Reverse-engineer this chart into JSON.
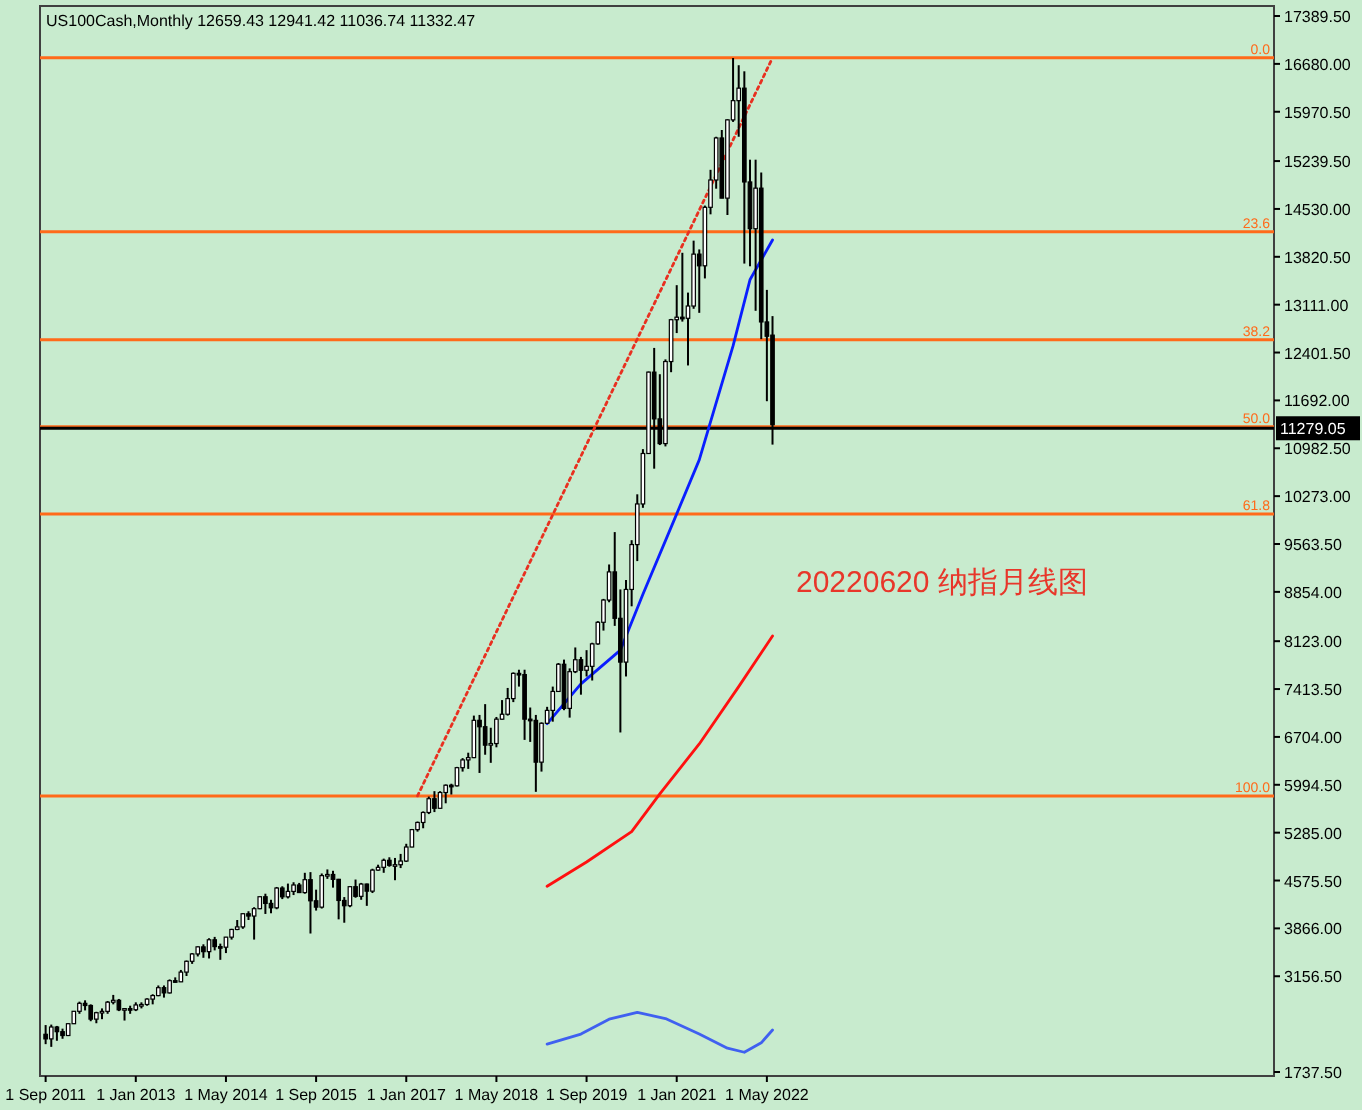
{
  "chart_data": {
    "type": "candlestick",
    "title": "US100Cash,Monthly  12659.43 12941.42 11036.74 11332.47",
    "annotations": [
      "20220620 纳指月线图",
      {
        "text": "0.0",
        "y": 16770
      },
      {
        "text": "23.6",
        "y": 14190
      },
      {
        "text": "38.2",
        "y": 12590
      },
      {
        "text": "50.0",
        "y": 11300
      },
      {
        "text": "61.8",
        "y": 10010
      },
      {
        "text": "100.0",
        "y": 5830
      }
    ],
    "x": [
      "2011-09",
      "2011-10",
      "2011-11",
      "2011-12",
      "2012-01",
      "2012-02",
      "2012-03",
      "2012-04",
      "2012-05",
      "2012-06",
      "2012-07",
      "2012-08",
      "2012-09",
      "2012-10",
      "2012-11",
      "2012-12",
      "2013-01",
      "2013-02",
      "2013-03",
      "2013-04",
      "2013-05",
      "2013-06",
      "2013-07",
      "2013-08",
      "2013-09",
      "2013-10",
      "2013-11",
      "2013-12",
      "2014-01",
      "2014-02",
      "2014-03",
      "2014-04",
      "2014-05",
      "2014-06",
      "2014-07",
      "2014-08",
      "2014-09",
      "2014-10",
      "2014-11",
      "2014-12",
      "2015-01",
      "2015-02",
      "2015-03",
      "2015-04",
      "2015-05",
      "2015-06",
      "2015-07",
      "2015-08",
      "2015-09",
      "2015-10",
      "2015-11",
      "2015-12",
      "2016-01",
      "2016-02",
      "2016-03",
      "2016-04",
      "2016-05",
      "2016-06",
      "2016-07",
      "2016-08",
      "2016-09",
      "2016-10",
      "2016-11",
      "2016-12",
      "2017-01",
      "2017-02",
      "2017-03",
      "2017-04",
      "2017-05",
      "2017-06",
      "2017-07",
      "2017-08",
      "2017-09",
      "2017-10",
      "2017-11",
      "2017-12",
      "2018-01",
      "2018-02",
      "2018-03",
      "2018-04",
      "2018-05",
      "2018-06",
      "2018-07",
      "2018-08",
      "2018-09",
      "2018-10",
      "2018-11",
      "2018-12",
      "2019-01",
      "2019-02",
      "2019-03",
      "2019-04",
      "2019-05",
      "2019-06",
      "2019-07",
      "2019-08",
      "2019-09",
      "2019-10",
      "2019-11",
      "2019-12",
      "2020-01",
      "2020-02",
      "2020-03",
      "2020-04",
      "2020-05",
      "2020-06",
      "2020-07",
      "2020-08",
      "2020-09",
      "2020-10",
      "2020-11",
      "2020-12",
      "2021-01",
      "2021-02",
      "2021-03",
      "2021-04",
      "2021-05",
      "2021-06",
      "2021-07",
      "2021-08",
      "2021-09",
      "2021-10",
      "2021-11",
      "2021-12",
      "2022-01",
      "2022-02",
      "2022-03",
      "2022-04",
      "2022-05",
      "2022-06"
    ],
    "ohlc": [
      [
        2296,
        2433,
        2150,
        2228
      ],
      [
        2228,
        2440,
        2110,
        2404
      ],
      [
        2404,
        2420,
        2200,
        2335
      ],
      [
        2335,
        2380,
        2230,
        2278
      ],
      [
        2278,
        2460,
        2270,
        2453
      ],
      [
        2453,
        2640,
        2450,
        2637
      ],
      [
        2637,
        2780,
        2600,
        2755
      ],
      [
        2755,
        2800,
        2650,
        2723
      ],
      [
        2723,
        2740,
        2490,
        2521
      ],
      [
        2521,
        2630,
        2460,
        2616
      ],
      [
        2616,
        2680,
        2520,
        2636
      ],
      [
        2636,
        2790,
        2600,
        2772
      ],
      [
        2772,
        2880,
        2740,
        2800
      ],
      [
        2800,
        2820,
        2640,
        2659
      ],
      [
        2659,
        2680,
        2500,
        2677
      ],
      [
        2677,
        2720,
        2600,
        2660
      ],
      [
        2660,
        2770,
        2640,
        2731
      ],
      [
        2731,
        2770,
        2680,
        2738
      ],
      [
        2738,
        2830,
        2720,
        2818
      ],
      [
        2818,
        2890,
        2740,
        2870
      ],
      [
        2870,
        3020,
        2860,
        2987
      ],
      [
        2987,
        3020,
        2840,
        2910
      ],
      [
        2910,
        3110,
        2900,
        3091
      ],
      [
        3091,
        3140,
        3060,
        3074
      ],
      [
        3074,
        3250,
        3070,
        3218
      ],
      [
        3218,
        3390,
        3160,
        3378
      ],
      [
        3378,
        3500,
        3340,
        3487
      ],
      [
        3487,
        3600,
        3450,
        3592
      ],
      [
        3592,
        3630,
        3430,
        3521
      ],
      [
        3521,
        3720,
        3420,
        3697
      ],
      [
        3697,
        3740,
        3540,
        3596
      ],
      [
        3596,
        3640,
        3400,
        3587
      ],
      [
        3587,
        3740,
        3500,
        3736
      ],
      [
        3736,
        3860,
        3700,
        3850
      ],
      [
        3850,
        3990,
        3840,
        3888
      ],
      [
        3888,
        4090,
        3860,
        4083
      ],
      [
        4083,
        4120,
        3990,
        4049
      ],
      [
        4049,
        4180,
        3700,
        4158
      ],
      [
        4158,
        4340,
        4150,
        4335
      ],
      [
        4335,
        4380,
        4080,
        4236
      ],
      [
        4236,
        4290,
        4090,
        4171
      ],
      [
        4171,
        4480,
        4150,
        4464
      ],
      [
        4464,
        4490,
        4300,
        4334
      ],
      [
        4334,
        4530,
        4310,
        4414
      ],
      [
        4414,
        4550,
        4360,
        4509
      ],
      [
        4509,
        4540,
        4390,
        4397
      ],
      [
        4397,
        4690,
        4380,
        4588
      ],
      [
        4588,
        4700,
        3790,
        4275
      ],
      [
        4275,
        4440,
        4130,
        4181
      ],
      [
        4181,
        4680,
        4160,
        4648
      ],
      [
        4648,
        4740,
        4600,
        4665
      ],
      [
        4665,
        4720,
        4470,
        4593
      ],
      [
        4593,
        4600,
        4000,
        4280
      ],
      [
        4280,
        4330,
        3950,
        4202
      ],
      [
        4202,
        4490,
        4180,
        4484
      ],
      [
        4484,
        4590,
        4320,
        4341
      ],
      [
        4341,
        4540,
        4290,
        4523
      ],
      [
        4523,
        4530,
        4200,
        4418
      ],
      [
        4418,
        4750,
        4390,
        4730
      ],
      [
        4730,
        4810,
        4720,
        4771
      ],
      [
        4771,
        4900,
        4690,
        4875
      ],
      [
        4875,
        4920,
        4780,
        4801
      ],
      [
        4801,
        4910,
        4580,
        4810
      ],
      [
        4810,
        4970,
        4760,
        4864
      ],
      [
        4864,
        5120,
        4850,
        5072
      ],
      [
        5072,
        5340,
        5070,
        5330
      ],
      [
        5330,
        5450,
        5300,
        5436
      ],
      [
        5436,
        5600,
        5350,
        5584
      ],
      [
        5584,
        5820,
        5560,
        5788
      ],
      [
        5788,
        5900,
        5590,
        5646
      ],
      [
        5646,
        5900,
        5640,
        5880
      ],
      [
        5880,
        6000,
        5720,
        5988
      ],
      [
        5988,
        6010,
        5850,
        5979
      ],
      [
        5979,
        6260,
        5970,
        6248
      ],
      [
        6248,
        6390,
        6190,
        6363
      ],
      [
        6363,
        6470,
        6230,
        6397
      ],
      [
        6397,
        7020,
        6390,
        6950
      ],
      [
        6950,
        7030,
        6170,
        6855
      ],
      [
        6855,
        7190,
        6440,
        6582
      ],
      [
        6582,
        6840,
        6320,
        6606
      ],
      [
        6606,
        7000,
        6550,
        6967
      ],
      [
        6967,
        7250,
        6960,
        7040
      ],
      [
        7040,
        7430,
        7020,
        7272
      ],
      [
        7272,
        7660,
        7220,
        7646
      ],
      [
        7646,
        7700,
        7450,
        7628
      ],
      [
        7628,
        7700,
        6660,
        6967
      ],
      [
        6967,
        7140,
        6630,
        6949
      ],
      [
        6949,
        7030,
        5890,
        6330
      ],
      [
        6330,
        6920,
        6190,
        6906
      ],
      [
        6906,
        7150,
        6900,
        7097
      ],
      [
        7097,
        7450,
        6930,
        7378
      ],
      [
        7378,
        7800,
        7370,
        7781
      ],
      [
        7781,
        7850,
        7100,
        7127
      ],
      [
        7127,
        7720,
        6990,
        7671
      ],
      [
        7671,
        8030,
        7650,
        7848
      ],
      [
        7848,
        7890,
        7330,
        7692
      ],
      [
        7692,
        7990,
        7600,
        7750
      ],
      [
        7750,
        8100,
        7540,
        8083
      ],
      [
        8083,
        8420,
        8070,
        8403
      ],
      [
        8403,
        8750,
        8280,
        8733
      ],
      [
        8733,
        9260,
        8700,
        9150
      ],
      [
        9150,
        9740,
        8350,
        8462
      ],
      [
        8462,
        8890,
        6770,
        7813
      ],
      [
        7813,
        9030,
        7600,
        8890
      ],
      [
        8890,
        9620,
        8640,
        9555
      ],
      [
        9555,
        10300,
        9310,
        10157
      ],
      [
        10157,
        10970,
        10100,
        10905
      ],
      [
        10905,
        12120,
        10900,
        12111
      ],
      [
        12111,
        12470,
        10680,
        11418
      ],
      [
        11418,
        12080,
        11030,
        11052
      ],
      [
        11052,
        12300,
        11010,
        12268
      ],
      [
        12268,
        12900,
        12110,
        12888
      ],
      [
        12888,
        13400,
        12690,
        12925
      ],
      [
        12925,
        13880,
        12860,
        12909
      ],
      [
        12909,
        13290,
        12210,
        13091
      ],
      [
        13091,
        14060,
        13050,
        13860
      ],
      [
        13860,
        13930,
        12990,
        13687
      ],
      [
        13687,
        14580,
        13500,
        14554
      ],
      [
        14554,
        15110,
        14450,
        14959
      ],
      [
        14959,
        15600,
        14830,
        15582
      ],
      [
        15582,
        15700,
        14690,
        14690
      ],
      [
        14690,
        15860,
        14440,
        15850
      ],
      [
        15850,
        16767,
        15820,
        16135
      ],
      [
        16135,
        16660,
        15600,
        16320
      ],
      [
        16320,
        16570,
        13720,
        14930
      ],
      [
        14930,
        15260,
        13680,
        14237
      ],
      [
        14237,
        15260,
        13020,
        14838
      ],
      [
        14838,
        15070,
        12600,
        12855
      ],
      [
        12855,
        13330,
        11680,
        12643
      ],
      [
        12659.43,
        12941.42,
        11036.74,
        11332.47
      ]
    ],
    "series": [
      {
        "type": "line",
        "color": "#0a1eff",
        "x": [
          "2019-02",
          "2019-08",
          "2020-03",
          "2020-07",
          "2021-01",
          "2021-05",
          "2021-11",
          "2022-02",
          "2022-06"
        ],
        "values": [
          6900,
          7490,
          7990,
          8820,
          10010,
          10810,
          12500,
          13480,
          14070
        ]
      },
      {
        "type": "line",
        "color": "#ff1010",
        "x": [
          "2019-02",
          "2019-09",
          "2020-05",
          "2020-10",
          "2021-05",
          "2021-12",
          "2022-06"
        ],
        "values": [
          4490,
          4850,
          5300,
          5860,
          6600,
          7450,
          8200
        ]
      },
      {
        "type": "line",
        "color": "#4060f0",
        "x": [
          "2019-02",
          "2019-08",
          "2020-01",
          "2020-06",
          "2020-11",
          "2021-05",
          "2021-10",
          "2022-01",
          "2022-04",
          "2022-06"
        ],
        "values": [
          2150,
          2300,
          2520,
          2620,
          2530,
          2300,
          2090,
          2030,
          2170,
          2360
        ]
      },
      {
        "type": "line",
        "color": "#e83020",
        "line_style": "dotted",
        "x": [
          "2017-03",
          "2022-06"
        ],
        "values": [
          5830,
          16770
        ]
      }
    ],
    "ref_lines": [
      {
        "axis": "y",
        "value": 16770,
        "color": "#ff6a1a"
      },
      {
        "axis": "y",
        "value": 14190,
        "color": "#ff6a1a"
      },
      {
        "axis": "y",
        "value": 12590,
        "color": "#ff6a1a"
      },
      {
        "axis": "y",
        "value": 11300,
        "color": "#ff6a1a"
      },
      {
        "axis": "y",
        "value": 10010,
        "color": "#ff6a1a"
      },
      {
        "axis": "y",
        "value": 5830,
        "color": "#ff6a1a"
      },
      {
        "axis": "y",
        "value": 11279.05,
        "label": "11279.05",
        "color": "#000000"
      }
    ],
    "xlim": [
      "2011-08",
      "2029-11"
    ],
    "xticks": [
      {
        "value": "2011-09",
        "label": "1 Sep 2011"
      },
      {
        "value": "2013-01",
        "label": "1 Jan 2013"
      },
      {
        "value": "2014-05",
        "label": "1 May 2014"
      },
      {
        "value": "2015-09",
        "label": "1 Sep 2015"
      },
      {
        "value": "2017-01",
        "label": "1 Jan 2017"
      },
      {
        "value": "2018-05",
        "label": "1 May 2018"
      },
      {
        "value": "2019-09",
        "label": "1 Sep 2019"
      },
      {
        "value": "2021-01",
        "label": "1 Jan 2021"
      },
      {
        "value": "2022-05",
        "label": "1 May 2022"
      }
    ],
    "ylim": [
      1678,
      17538
    ],
    "yticks": [
      {
        "value": 1737.5,
        "label": "1737.50"
      },
      {
        "value": 3156.5,
        "label": "3156.50"
      },
      {
        "value": 3866,
        "label": "3866.00"
      },
      {
        "value": 4575.5,
        "label": "4575.50"
      },
      {
        "value": 5285,
        "label": "5285.00"
      },
      {
        "value": 5994.5,
        "label": "5994.50"
      },
      {
        "value": 6704,
        "label": "6704.00"
      },
      {
        "value": 7413.5,
        "label": "7413.50"
      },
      {
        "value": 8123,
        "label": "8123.00"
      },
      {
        "value": 8854,
        "label": "8854.00"
      },
      {
        "value": 9563.5,
        "label": "9563.50"
      },
      {
        "value": 10273,
        "label": "10273.00"
      },
      {
        "value": 10982.5,
        "label": "10982.50"
      },
      {
        "value": 11692,
        "label": "11692.00"
      },
      {
        "value": 12401.5,
        "label": "12401.50"
      },
      {
        "value": 13111,
        "label": "13111.00"
      },
      {
        "value": 13820.5,
        "label": "13820.50"
      },
      {
        "value": 14530,
        "label": "14530.00"
      },
      {
        "value": 15239.5,
        "label": "15239.50"
      },
      {
        "value": 15970.5,
        "label": "15970.50"
      },
      {
        "value": 16680,
        "label": "16680.00"
      },
      {
        "value": 17389.5,
        "label": "17389.50"
      }
    ]
  }
}
